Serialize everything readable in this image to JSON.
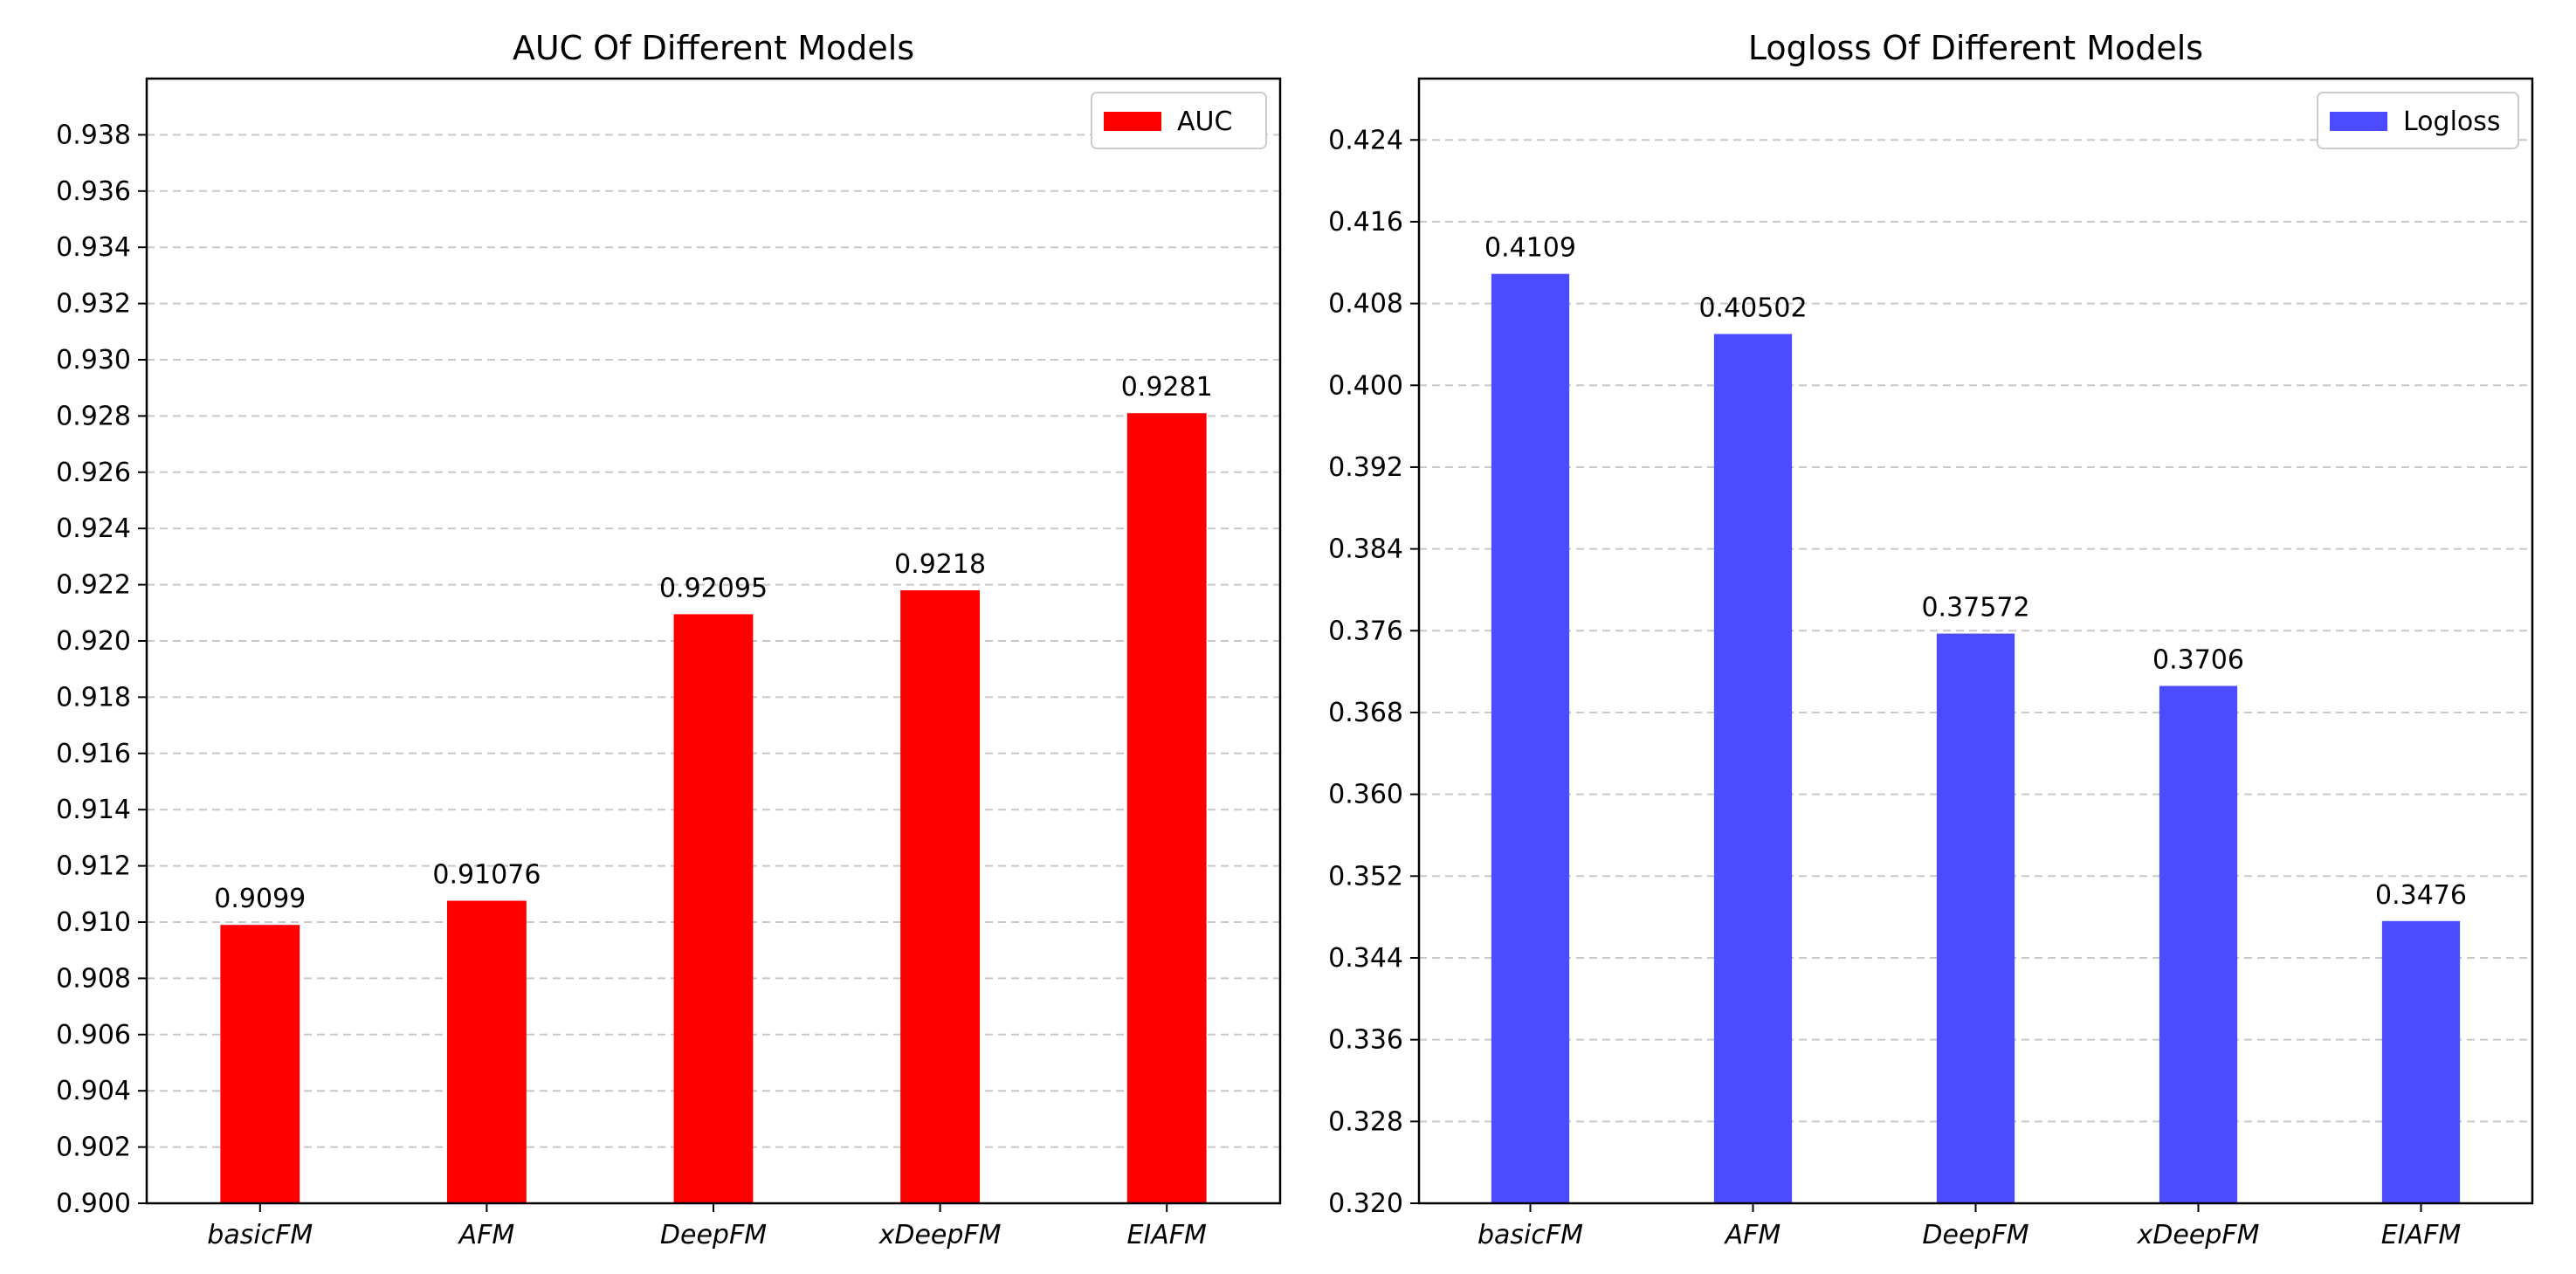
{
  "chart_data": [
    {
      "type": "bar",
      "title": "AUC Of Different Models",
      "xlabel": "",
      "ylabel": "",
      "categories": [
        "basicFM",
        "AFM",
        "DeepFM",
        "xDeepFM",
        "EIAFM"
      ],
      "series": [
        {
          "name": "AUC",
          "color": "#ff0000",
          "values": [
            0.9099,
            0.91076,
            0.92095,
            0.9218,
            0.9281
          ]
        }
      ],
      "data_labels": [
        "0.9099",
        "0.91076",
        "0.92095",
        "0.9218",
        "0.9281"
      ],
      "ylim": [
        0.9,
        0.94
      ],
      "yticks": [
        0.9,
        0.902,
        0.904,
        0.906,
        0.908,
        0.91,
        0.912,
        0.914,
        0.916,
        0.918,
        0.92,
        0.922,
        0.924,
        0.926,
        0.928,
        0.93,
        0.932,
        0.934,
        0.936,
        0.938
      ],
      "ytick_labels": [
        "0.900",
        "0.902",
        "0.904",
        "0.906",
        "0.908",
        "0.910",
        "0.912",
        "0.914",
        "0.916",
        "0.918",
        "0.920",
        "0.922",
        "0.924",
        "0.926",
        "0.928",
        "0.930",
        "0.932",
        "0.934",
        "0.936",
        "0.938"
      ],
      "grid": "y-dashed",
      "legend": "top-right"
    },
    {
      "type": "bar",
      "title": "Logloss Of Different Models",
      "xlabel": "",
      "ylabel": "",
      "categories": [
        "basicFM",
        "AFM",
        "DeepFM",
        "xDeepFM",
        "EIAFM"
      ],
      "series": [
        {
          "name": "Logloss",
          "color": "#4b4bff",
          "values": [
            0.4109,
            0.40502,
            0.37572,
            0.3706,
            0.3476
          ]
        }
      ],
      "data_labels": [
        "0.4109",
        "0.40502",
        "0.37572",
        "0.3706",
        "0.3476"
      ],
      "ylim": [
        0.32,
        0.43
      ],
      "yticks": [
        0.32,
        0.328,
        0.336,
        0.344,
        0.352,
        0.36,
        0.368,
        0.376,
        0.384,
        0.392,
        0.4,
        0.408,
        0.416,
        0.424
      ],
      "ytick_labels": [
        "0.320",
        "0.328",
        "0.336",
        "0.344",
        "0.352",
        "0.360",
        "0.368",
        "0.376",
        "0.384",
        "0.392",
        "0.400",
        "0.408",
        "0.416",
        "0.424"
      ],
      "grid": "y-dashed",
      "legend": "top-right"
    }
  ]
}
